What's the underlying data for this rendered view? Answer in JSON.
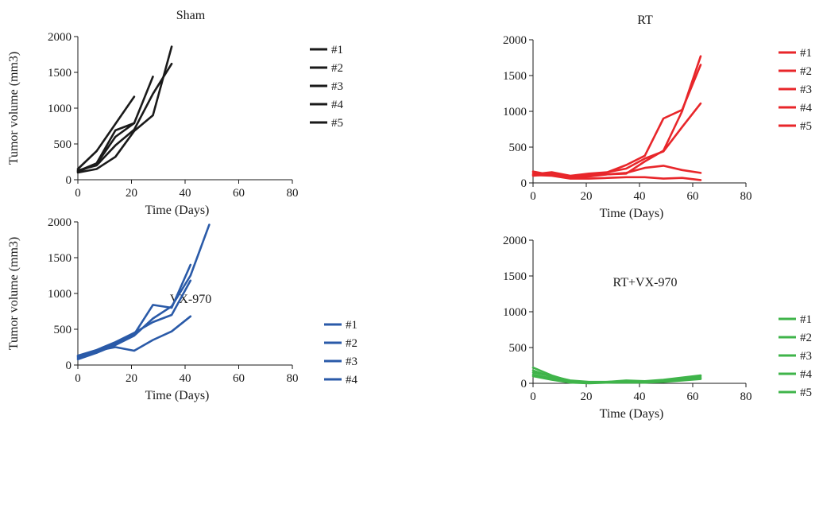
{
  "chart_data": [
    {
      "type": "line",
      "title": "Sham",
      "xlabel": "Time (Days)",
      "ylabel": "Tumor volume (mm3)",
      "xlim": [
        0,
        80
      ],
      "ylim": [
        0,
        2000
      ],
      "xticks": [
        "0",
        "20",
        "40",
        "60",
        "80"
      ],
      "yticks": [
        "0",
        "500",
        "1000",
        "1500",
        "2000"
      ],
      "color": "#1a1a1a",
      "series": [
        {
          "name": "#1",
          "x": [
            0,
            7,
            14,
            21
          ],
          "y": [
            150,
            400,
            780,
            1160
          ]
        },
        {
          "name": "#2",
          "x": [
            0,
            7,
            14,
            21,
            28
          ],
          "y": [
            120,
            230,
            690,
            790,
            1440
          ]
        },
        {
          "name": "#3",
          "x": [
            0,
            7,
            14,
            21,
            28,
            35
          ],
          "y": [
            100,
            150,
            320,
            680,
            900,
            1860
          ]
        },
        {
          "name": "#4",
          "x": [
            0,
            7,
            14,
            21,
            28,
            35
          ],
          "y": [
            130,
            200,
            480,
            700,
            1200,
            1620
          ]
        },
        {
          "name": "#5",
          "x": [
            0,
            7,
            14,
            21
          ],
          "y": [
            110,
            220,
            600,
            790
          ]
        }
      ]
    },
    {
      "type": "line",
      "title": "RT",
      "xlabel": "Time (Days)",
      "ylabel": "",
      "xlim": [
        0,
        80
      ],
      "ylim": [
        0,
        2000
      ],
      "xticks": [
        "0",
        "20",
        "40",
        "60",
        "80"
      ],
      "yticks": [
        "0",
        "500",
        "1000",
        "1500",
        "2000"
      ],
      "color": "#e8262a",
      "series": [
        {
          "name": "#1",
          "x": [
            0,
            7,
            14,
            21,
            28,
            35,
            42,
            49,
            56,
            63
          ],
          "y": [
            160,
            110,
            70,
            90,
            120,
            140,
            210,
            240,
            180,
            140
          ]
        },
        {
          "name": "#2",
          "x": [
            0,
            7,
            14,
            21,
            28,
            35,
            42,
            49,
            56,
            63
          ],
          "y": [
            120,
            150,
            100,
            130,
            150,
            250,
            380,
            900,
            1020,
            1650
          ]
        },
        {
          "name": "#3",
          "x": [
            0,
            7,
            14,
            21,
            28,
            35,
            42,
            49,
            56,
            63
          ],
          "y": [
            140,
            130,
            80,
            110,
            150,
            200,
            340,
            440,
            780,
            1110
          ]
        },
        {
          "name": "#4",
          "x": [
            0,
            7,
            14,
            21,
            28,
            35,
            42,
            49,
            56,
            63
          ],
          "y": [
            100,
            120,
            90,
            110,
            120,
            130,
            300,
            450,
            1000,
            1770
          ]
        },
        {
          "name": "#5",
          "x": [
            0,
            7,
            14,
            21,
            28,
            35,
            42,
            49,
            56,
            63
          ],
          "y": [
            110,
            100,
            60,
            60,
            70,
            80,
            80,
            60,
            70,
            40
          ]
        }
      ]
    },
    {
      "type": "line",
      "title": "VX-970",
      "xlabel": "Time (Days)",
      "ylabel": "Tumor volume (mm3)",
      "xlim": [
        0,
        80
      ],
      "ylim": [
        0,
        2000
      ],
      "xticks": [
        "0",
        "20",
        "40",
        "60",
        "80"
      ],
      "yticks": [
        "0",
        "500",
        "1000",
        "1500",
        "2000"
      ],
      "color": "#2a5aa8",
      "series": [
        {
          "name": "#1",
          "x": [
            0,
            7,
            14,
            21,
            28,
            35,
            42
          ],
          "y": [
            120,
            200,
            250,
            200,
            350,
            470,
            680
          ]
        },
        {
          "name": "#2",
          "x": [
            0,
            7,
            14,
            21,
            28,
            35,
            42
          ],
          "y": [
            100,
            180,
            300,
            430,
            840,
            800,
            1400
          ]
        },
        {
          "name": "#3",
          "x": [
            0,
            7,
            14,
            21,
            28,
            35,
            42,
            49
          ],
          "y": [
            80,
            170,
            280,
            410,
            650,
            820,
            1250,
            1960
          ]
        },
        {
          "name": "#4",
          "x": [
            0,
            7,
            14,
            21,
            28,
            35,
            42
          ],
          "y": [
            130,
            210,
            320,
            450,
            600,
            700,
            1180
          ]
        }
      ]
    },
    {
      "type": "line",
      "title": "RT+VX-970",
      "xlabel": "Time (Days)",
      "ylabel": "",
      "xlim": [
        0,
        80
      ],
      "ylim": [
        0,
        2000
      ],
      "xticks": [
        "0",
        "20",
        "40",
        "60",
        "80"
      ],
      "yticks": [
        "0",
        "500",
        "1000",
        "1500",
        "2000"
      ],
      "color": "#3fb44a",
      "series": [
        {
          "name": "#1",
          "x": [
            0,
            7,
            14,
            21,
            28,
            35,
            42,
            49,
            56,
            63
          ],
          "y": [
            220,
            110,
            30,
            10,
            20,
            30,
            20,
            40,
            70,
            100
          ]
        },
        {
          "name": "#2",
          "x": [
            0,
            7,
            14,
            21,
            28,
            35,
            42,
            49,
            56,
            63
          ],
          "y": [
            180,
            90,
            20,
            10,
            10,
            20,
            20,
            30,
            60,
            80
          ]
        },
        {
          "name": "#3",
          "x": [
            0,
            7,
            14,
            21,
            28,
            35,
            42,
            49,
            56,
            63
          ],
          "y": [
            150,
            100,
            40,
            20,
            20,
            40,
            30,
            50,
            80,
            110
          ]
        },
        {
          "name": "#4",
          "x": [
            0,
            7,
            14,
            21,
            28,
            35,
            42,
            49,
            56,
            63
          ],
          "y": [
            120,
            70,
            20,
            10,
            10,
            20,
            10,
            30,
            50,
            70
          ]
        },
        {
          "name": "#5",
          "x": [
            0,
            7,
            14,
            21,
            28,
            35,
            42,
            49,
            56,
            63
          ],
          "y": [
            100,
            50,
            10,
            0,
            10,
            10,
            10,
            20,
            40,
            60
          ]
        }
      ]
    }
  ]
}
